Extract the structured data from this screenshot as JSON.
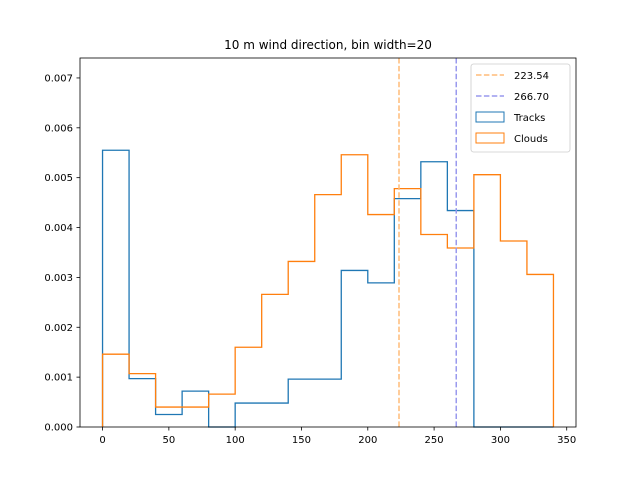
{
  "chart_data": {
    "type": "histogram",
    "title": "10 m wind direction, bin width=20",
    "xlabel": "",
    "ylabel": "",
    "xlim": [
      -17,
      357
    ],
    "ylim": [
      0,
      0.0074
    ],
    "x_ticks": [
      "0",
      "50",
      "100",
      "150",
      "200",
      "250",
      "300",
      "350"
    ],
    "x_tick_values": [
      0,
      50,
      100,
      150,
      200,
      250,
      300,
      350
    ],
    "y_ticks": [
      "0.000",
      "0.001",
      "0.002",
      "0.003",
      "0.004",
      "0.005",
      "0.006",
      "0.007"
    ],
    "y_tick_values": [
      0,
      0.001,
      0.002,
      0.003,
      0.004,
      0.005,
      0.006,
      0.007
    ],
    "bin_edges": [
      0,
      20,
      40,
      60,
      80,
      100,
      120,
      140,
      160,
      180,
      200,
      220,
      240,
      260,
      280,
      300,
      320,
      340
    ],
    "series": [
      {
        "name": "Tracks",
        "color": "#1f77b4",
        "values": [
          0.00555,
          0.00097,
          0.00025,
          0.00072,
          0.0,
          0.00048,
          0.00048,
          0.00096,
          0.00096,
          0.00314,
          0.00289,
          0.00458,
          0.00532,
          0.00434,
          0.0,
          0.0,
          0.0
        ]
      },
      {
        "name": "Clouds",
        "color": "#ff7f0e",
        "values": [
          0.00146,
          0.00107,
          0.0004,
          0.0004,
          0.00066,
          0.0016,
          0.00266,
          0.00332,
          0.00466,
          0.00546,
          0.00426,
          0.00478,
          0.00386,
          0.00359,
          0.00506,
          0.00373,
          0.00306
        ]
      }
    ],
    "vlines": [
      {
        "value": 223.54,
        "label": "223.54",
        "color": "#ffbb78"
      },
      {
        "value": 266.7,
        "label": "266.70",
        "color": "#9999ee"
      }
    ],
    "legend_position": "top-right",
    "grid": false
  }
}
